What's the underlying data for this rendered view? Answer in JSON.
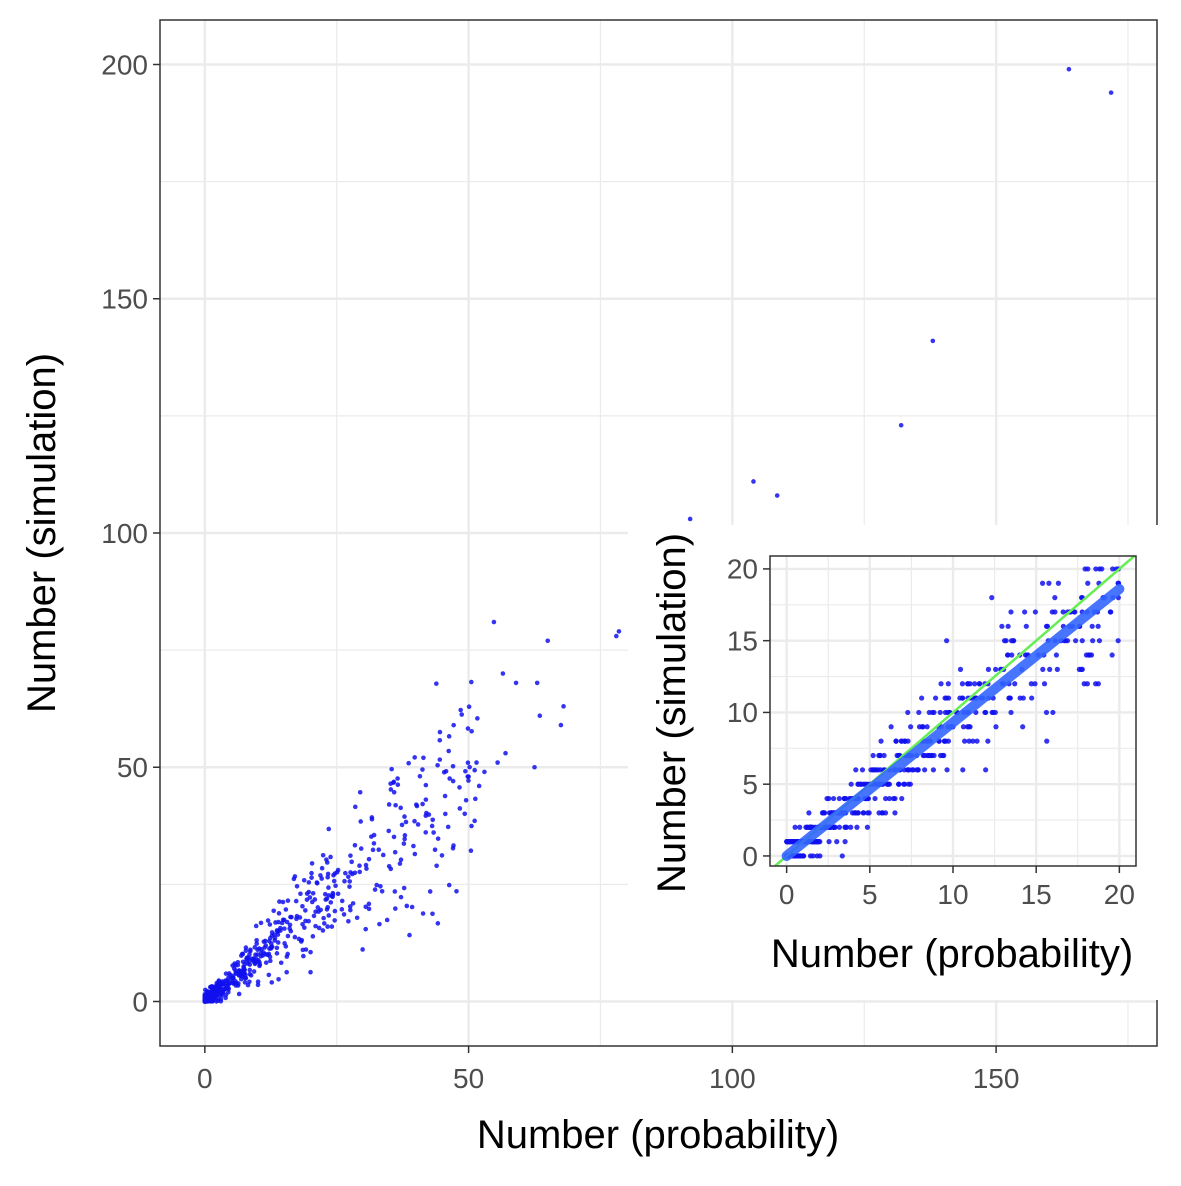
{
  "colors": {
    "point": "#1010ee",
    "fit": "#3366ff",
    "identity": "#66ee55",
    "grid": "#ebebeb",
    "axis_text": "#4d4d4d",
    "frame": "#333333"
  },
  "chart_data": [
    {
      "type": "scatter",
      "title": "",
      "xlabel": "Number (probability)",
      "ylabel": "Number (simulation)",
      "xlim": [
        -8.5,
        180.5
      ],
      "ylim": [
        -9.5,
        209.5
      ],
      "xticks": [
        0,
        50,
        100,
        150
      ],
      "yticks": [
        0,
        50,
        100,
        150,
        200
      ],
      "grid": true,
      "legend": "none",
      "highlighted_points": [
        [
          163.8,
          199
        ],
        [
          171.8,
          194
        ],
        [
          138.0,
          141
        ],
        [
          132.0,
          123
        ],
        [
          104.0,
          111
        ],
        [
          108.5,
          108
        ],
        [
          92.0,
          103
        ],
        [
          78.0,
          78
        ],
        [
          78.5,
          79
        ],
        [
          54.8,
          81
        ],
        [
          65.0,
          77
        ],
        [
          56.5,
          70
        ],
        [
          59.0,
          68
        ],
        [
          63.0,
          68
        ],
        [
          68.0,
          63
        ],
        [
          67.5,
          59
        ],
        [
          63.5,
          61
        ],
        [
          62.5,
          50
        ],
        [
          57.0,
          53
        ],
        [
          51.5,
          51
        ],
        [
          55.5,
          51
        ],
        [
          53.0,
          49
        ],
        [
          50.0,
          48
        ],
        [
          52.0,
          46
        ]
      ],
      "cluster": {
        "n_points": 650,
        "x_range": [
          0,
          52
        ],
        "y_over_x_slope": 0.95,
        "note_ratio_spread": 0.28
      }
    },
    {
      "type": "scatter",
      "title": "",
      "xlabel": "Number (probability)",
      "ylabel": "Number (simulation)",
      "xlim": [
        -1,
        21
      ],
      "ylim": [
        -0.7,
        20.9
      ],
      "xticks": [
        0,
        5,
        10,
        15,
        20
      ],
      "yticks": [
        0,
        5,
        10,
        15,
        20
      ],
      "grid": true,
      "legend": "none",
      "identity_line": {
        "slope": 1,
        "intercept": 0
      },
      "fit_line": {
        "slope": 0.93,
        "intercept": 0,
        "x_range": [
          0,
          20
        ]
      },
      "cluster": {
        "n_points": 600,
        "x_range": [
          0,
          20
        ],
        "y_integer_valued": true
      }
    }
  ]
}
